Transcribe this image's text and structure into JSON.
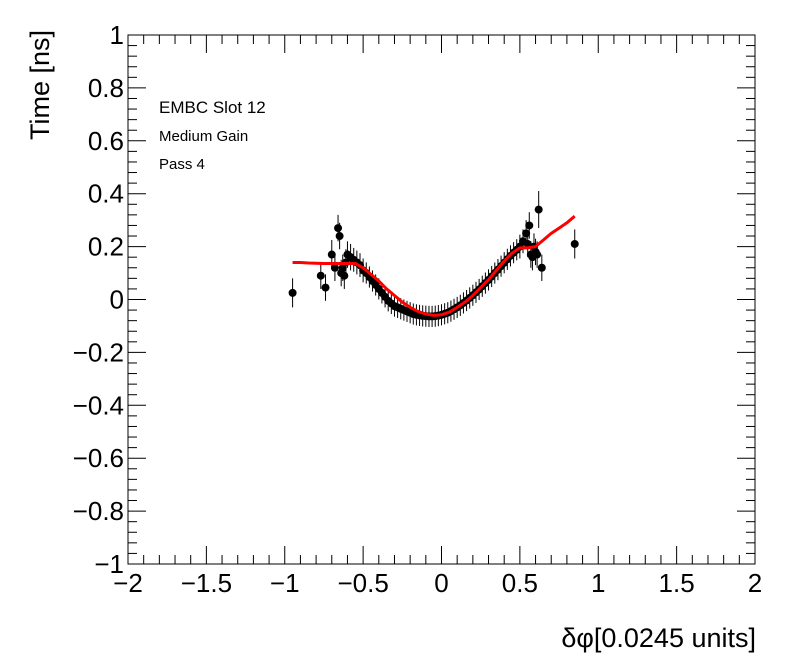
{
  "chart_data": {
    "type": "scatter",
    "title": "",
    "xlabel": "δφ[0.0245 units]",
    "ylabel": "Time [ns]",
    "xlim": [
      -2,
      2
    ],
    "ylim": [
      -1,
      1
    ],
    "x_ticks": [
      -2,
      -1.5,
      -1,
      -0.5,
      0,
      0.5,
      1,
      1.5,
      2
    ],
    "y_ticks": [
      -1,
      -0.8,
      -0.6,
      -0.4,
      -0.2,
      0,
      0.2,
      0.4,
      0.6,
      0.8,
      1
    ],
    "x_tick_labels": [
      "−2",
      "−1.5",
      "−1",
      "−0.5",
      "0",
      "0.5",
      "1",
      "1.5",
      "2"
    ],
    "y_tick_labels": [
      "−1",
      "−0.8",
      "−0.6",
      "−0.4",
      "−0.2",
      "0",
      "0.2",
      "0.4",
      "0.6",
      "0.8",
      "1"
    ],
    "grid": false,
    "annotations": [
      "EMBC Slot 12",
      "Medium Gain",
      "Pass 4"
    ],
    "colors": {
      "points": "#000000",
      "fit": "#ff0000"
    },
    "series": [
      {
        "kind": "points_with_errors",
        "x": [
          -0.95,
          -0.77,
          -0.74,
          -0.7,
          -0.68,
          -0.66,
          -0.65,
          -0.64,
          -0.63,
          -0.62,
          -0.61,
          -0.6,
          -0.58,
          -0.56,
          -0.54,
          -0.52,
          -0.5,
          -0.48,
          -0.46,
          -0.44,
          -0.42,
          -0.4,
          -0.38,
          -0.36,
          -0.34,
          -0.32,
          -0.3,
          -0.28,
          -0.26,
          -0.24,
          -0.22,
          -0.2,
          -0.18,
          -0.16,
          -0.14,
          -0.12,
          -0.1,
          -0.08,
          -0.06,
          -0.04,
          -0.02,
          0.0,
          0.02,
          0.04,
          0.06,
          0.08,
          0.1,
          0.12,
          0.14,
          0.16,
          0.18,
          0.2,
          0.22,
          0.24,
          0.26,
          0.28,
          0.3,
          0.32,
          0.34,
          0.36,
          0.38,
          0.4,
          0.42,
          0.44,
          0.46,
          0.48,
          0.5,
          0.52,
          0.54,
          0.55,
          0.56,
          0.57,
          0.58,
          0.59,
          0.6,
          0.61,
          0.62,
          0.64,
          0.85
        ],
        "y": [
          0.025,
          0.09,
          0.045,
          0.17,
          0.12,
          0.27,
          0.24,
          0.1,
          0.12,
          0.09,
          0.14,
          0.17,
          0.16,
          0.15,
          0.14,
          0.13,
          0.11,
          0.1,
          0.085,
          0.07,
          0.055,
          0.04,
          0.025,
          0.01,
          -0.005,
          -0.015,
          -0.025,
          -0.03,
          -0.035,
          -0.04,
          -0.045,
          -0.05,
          -0.055,
          -0.058,
          -0.06,
          -0.062,
          -0.063,
          -0.064,
          -0.064,
          -0.063,
          -0.061,
          -0.058,
          -0.054,
          -0.05,
          -0.044,
          -0.037,
          -0.03,
          -0.022,
          -0.013,
          -0.004,
          0.006,
          0.016,
          0.027,
          0.038,
          0.05,
          0.062,
          0.074,
          0.087,
          0.1,
          0.113,
          0.126,
          0.139,
          0.152,
          0.165,
          0.177,
          0.188,
          0.2,
          0.22,
          0.25,
          0.21,
          0.28,
          0.17,
          0.16,
          0.2,
          0.18,
          0.17,
          0.34,
          0.12,
          0.21
        ],
        "yerr": [
          0.055,
          0.05,
          0.05,
          0.055,
          0.05,
          0.05,
          0.05,
          0.05,
          0.05,
          0.05,
          0.05,
          0.05,
          0.05,
          0.045,
          0.045,
          0.045,
          0.045,
          0.04,
          0.04,
          0.04,
          0.04,
          0.04,
          0.04,
          0.04,
          0.04,
          0.04,
          0.04,
          0.04,
          0.04,
          0.04,
          0.04,
          0.04,
          0.04,
          0.04,
          0.04,
          0.04,
          0.04,
          0.04,
          0.04,
          0.04,
          0.04,
          0.04,
          0.04,
          0.04,
          0.04,
          0.04,
          0.04,
          0.04,
          0.04,
          0.04,
          0.04,
          0.04,
          0.04,
          0.04,
          0.04,
          0.04,
          0.04,
          0.04,
          0.04,
          0.04,
          0.04,
          0.04,
          0.04,
          0.04,
          0.04,
          0.04,
          0.045,
          0.045,
          0.05,
          0.05,
          0.05,
          0.05,
          0.05,
          0.05,
          0.05,
          0.05,
          0.07,
          0.05,
          0.055
        ]
      },
      {
        "kind": "fit_line",
        "x": [
          -0.95,
          -0.9,
          -0.85,
          -0.8,
          -0.75,
          -0.7,
          -0.65,
          -0.6,
          -0.55,
          -0.5,
          -0.45,
          -0.4,
          -0.35,
          -0.3,
          -0.25,
          -0.2,
          -0.15,
          -0.1,
          -0.05,
          0.0,
          0.05,
          0.1,
          0.15,
          0.2,
          0.25,
          0.3,
          0.35,
          0.4,
          0.45,
          0.5,
          0.55,
          0.6,
          0.65,
          0.7,
          0.75,
          0.8,
          0.85
        ],
        "y": [
          0.14,
          0.14,
          0.138,
          0.137,
          0.136,
          0.136,
          0.136,
          0.136,
          0.136,
          0.12,
          0.095,
          0.07,
          0.04,
          0.015,
          -0.01,
          -0.03,
          -0.045,
          -0.055,
          -0.06,
          -0.058,
          -0.048,
          -0.03,
          -0.01,
          0.015,
          0.045,
          0.075,
          0.11,
          0.145,
          0.175,
          0.195,
          0.195,
          0.2,
          0.225,
          0.25,
          0.27,
          0.29,
          0.315
        ]
      }
    ]
  }
}
